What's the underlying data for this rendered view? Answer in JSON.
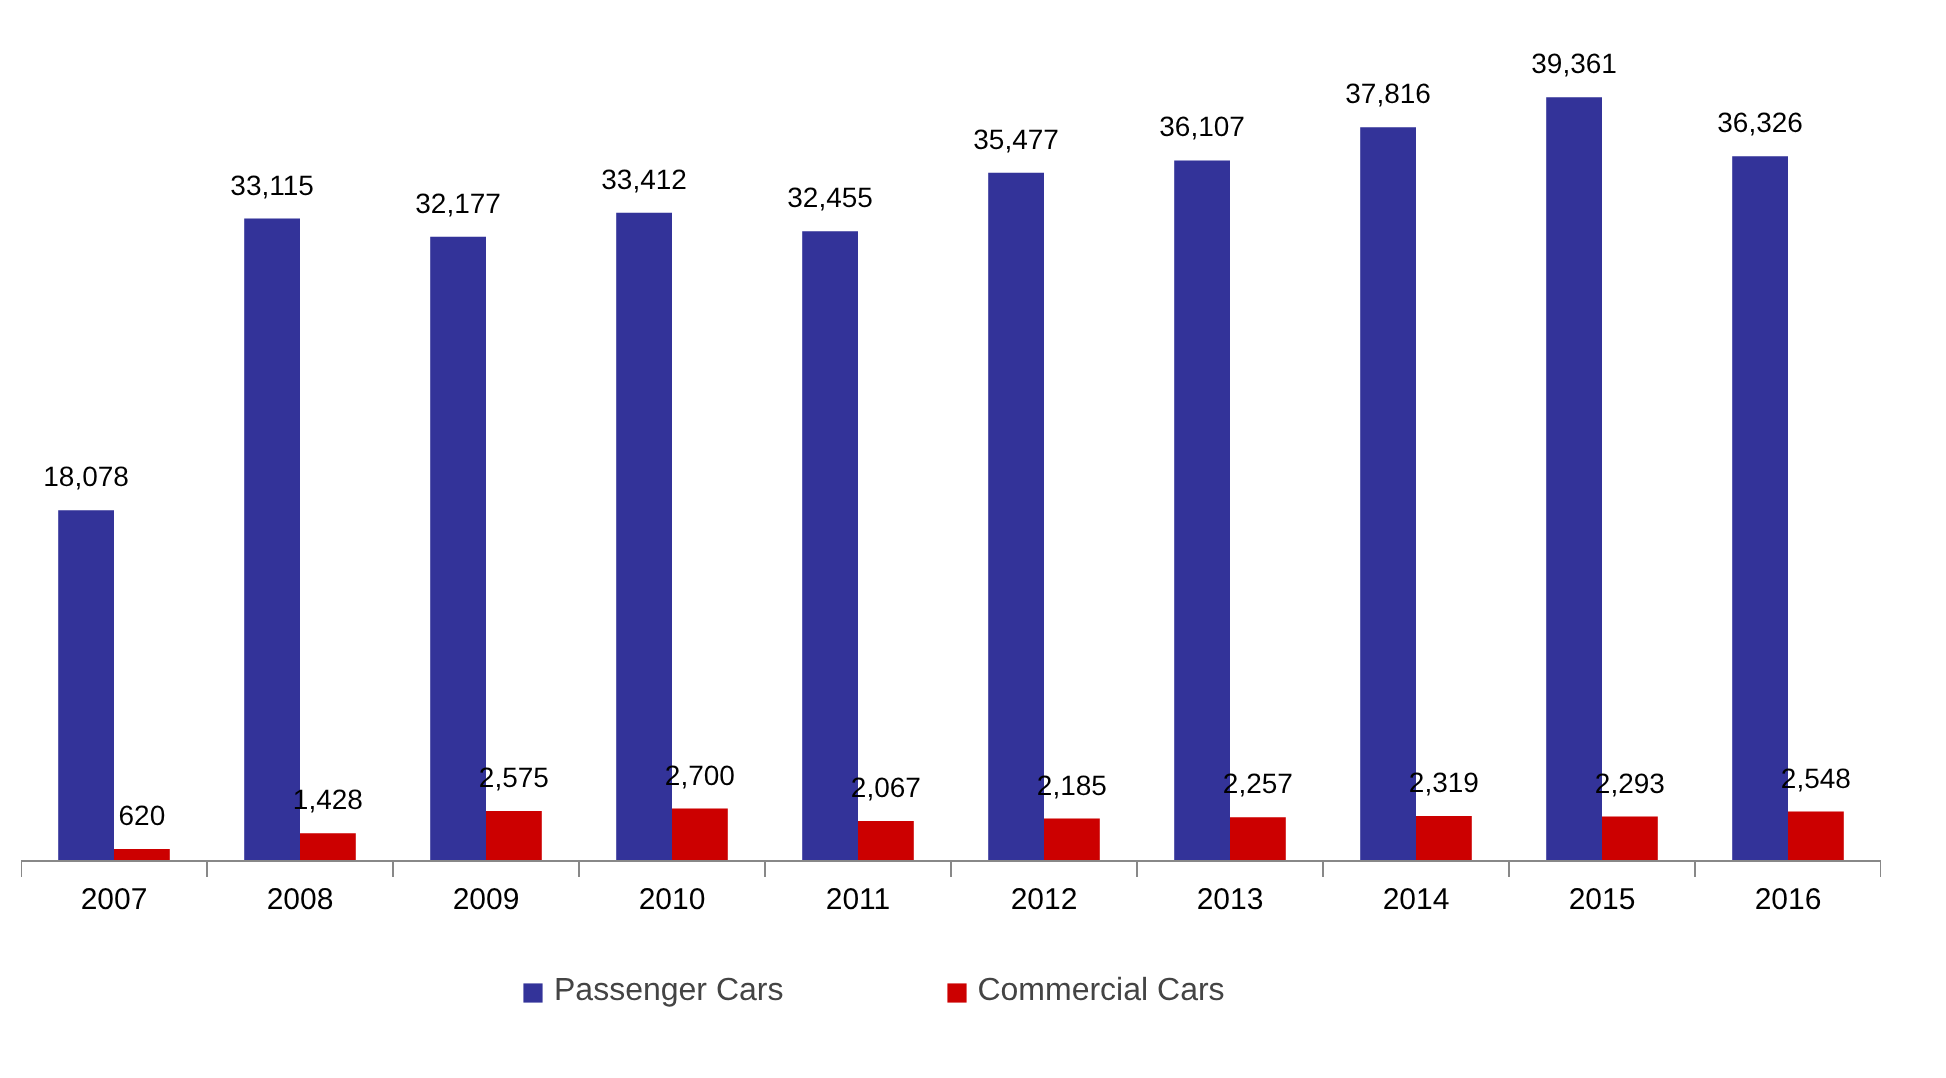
{
  "chart_data": {
    "type": "bar",
    "categories": [
      "2007",
      "2008",
      "2009",
      "2010",
      "2011",
      "2012",
      "2013",
      "2014",
      "2015",
      "2016"
    ],
    "series": [
      {
        "name": "Passenger Cars",
        "color": "#333399",
        "values": [
          18078,
          33115,
          32177,
          33412,
          32455,
          35477,
          36107,
          37816,
          39361,
          36326
        ],
        "value_labels": [
          "18,078",
          "33,115",
          "32,177",
          "33,412",
          "32,455",
          "35,477",
          "36,107",
          "37,816",
          "39,361",
          "36,326"
        ]
      },
      {
        "name": "Commercial Cars",
        "color": "#cc0000",
        "values": [
          620,
          1428,
          2575,
          2700,
          2067,
          2185,
          2257,
          2319,
          2293,
          2548
        ],
        "value_labels": [
          "620",
          "1,428",
          "2,575",
          "2,700",
          "2,067",
          "2,185",
          "2,257",
          "2,319",
          "2,293",
          "2,548"
        ]
      }
    ],
    "legend": "bottom"
  }
}
